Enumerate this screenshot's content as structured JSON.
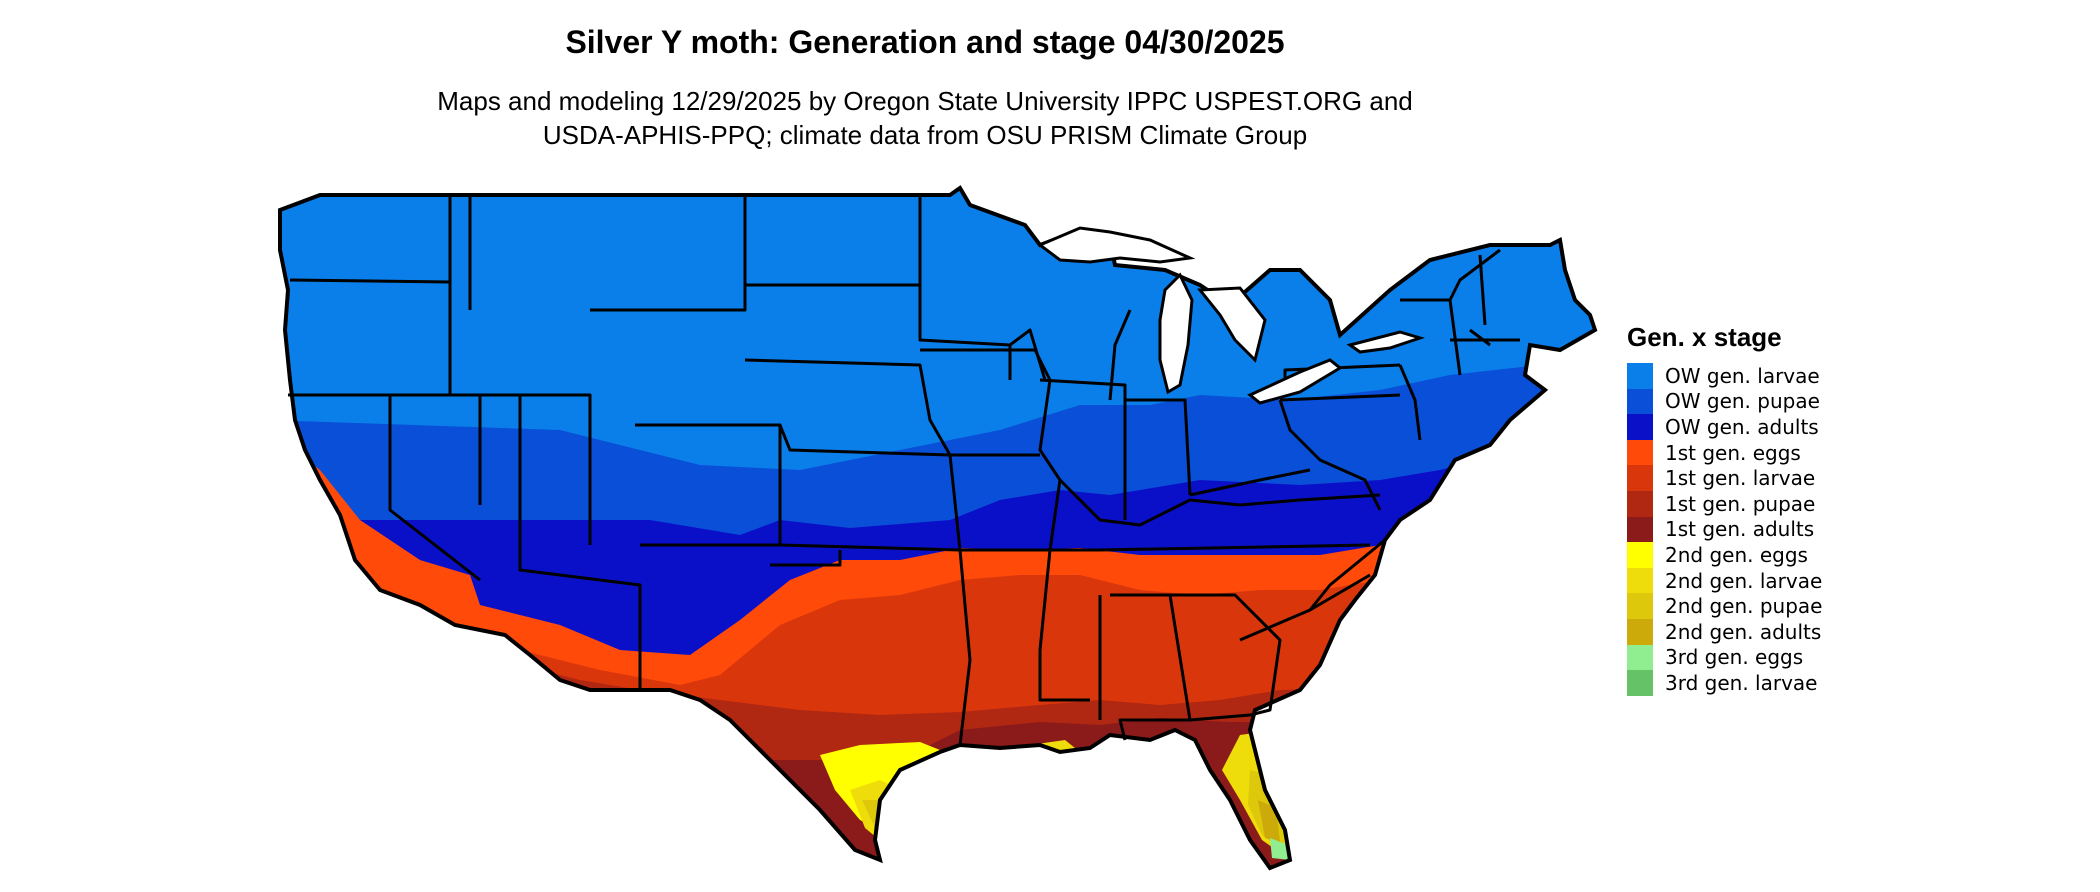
{
  "title": "Silver Y moth: Generation and stage 04/30/2025",
  "subtitle_lines": [
    "Maps and modeling 12/29/2025 by Oregon State University IPPC USPEST.ORG and",
    "USDA-APHIS-PPQ; climate data from OSU PRISM Climate Group"
  ],
  "legend": {
    "title": "Gen. x stage",
    "items": [
      {
        "label": "OW gen. larvae",
        "color": "#0A7FEA"
      },
      {
        "label": "OW gen. pupae",
        "color": "#0A4FD8"
      },
      {
        "label": "OW gen. adults",
        "color": "#0A10C8"
      },
      {
        "label": "1st gen. eggs",
        "color": "#FF4A0A"
      },
      {
        "label": "1st gen. larvae",
        "color": "#D9360C"
      },
      {
        "label": "1st gen. pupae",
        "color": "#B02712"
      },
      {
        "label": "1st gen. adults",
        "color": "#8B1A1A"
      },
      {
        "label": "2nd gen. eggs",
        "color": "#FFFF00"
      },
      {
        "label": "2nd gen. larvae",
        "color": "#EEDD0A"
      },
      {
        "label": "2nd gen. pupae",
        "color": "#DDC80C"
      },
      {
        "label": "2nd gen. adults",
        "color": "#CCAA0A"
      },
      {
        "label": "3rd gen. eggs",
        "color": "#90EE90"
      },
      {
        "label": "3rd gen. larvae",
        "color": "#66C266"
      }
    ]
  }
}
